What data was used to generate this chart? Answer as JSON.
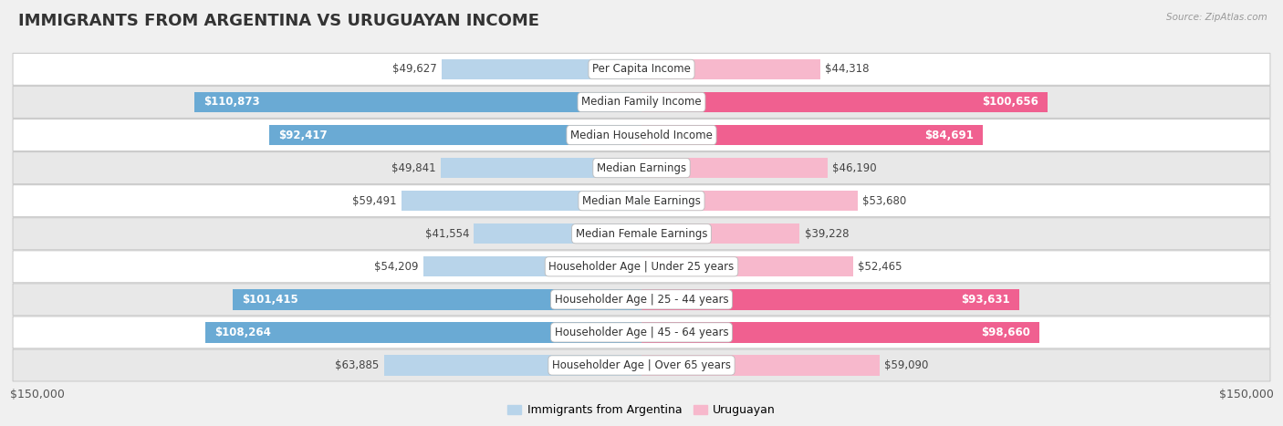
{
  "title": "IMMIGRANTS FROM ARGENTINA VS URUGUAYAN INCOME",
  "source": "Source: ZipAtlas.com",
  "categories": [
    "Per Capita Income",
    "Median Family Income",
    "Median Household Income",
    "Median Earnings",
    "Median Male Earnings",
    "Median Female Earnings",
    "Householder Age | Under 25 years",
    "Householder Age | 25 - 44 years",
    "Householder Age | 45 - 64 years",
    "Householder Age | Over 65 years"
  ],
  "argentina_values": [
    49627,
    110873,
    92417,
    49841,
    59491,
    41554,
    54209,
    101415,
    108264,
    63885
  ],
  "uruguayan_values": [
    44318,
    100656,
    84691,
    46190,
    53680,
    39228,
    52465,
    93631,
    98660,
    59090
  ],
  "argentina_labels": [
    "$49,627",
    "$110,873",
    "$92,417",
    "$49,841",
    "$59,491",
    "$41,554",
    "$54,209",
    "$101,415",
    "$108,264",
    "$63,885"
  ],
  "uruguayan_labels": [
    "$44,318",
    "$100,656",
    "$84,691",
    "$46,190",
    "$53,680",
    "$39,228",
    "$52,465",
    "$93,631",
    "$98,660",
    "$59,090"
  ],
  "argentina_color_light": "#b8d4ea",
  "argentina_color_dark": "#6aaad4",
  "uruguayan_color_light": "#f7b8cc",
  "uruguayan_color_dark": "#f06090",
  "large_threshold": 70000,
  "max_value": 150000,
  "bg_color": "#f0f0f0",
  "row_bg_odd": "#ffffff",
  "row_bg_even": "#e8e8e8",
  "title_fontsize": 13,
  "label_fontsize": 8.5,
  "cat_fontsize": 8.5,
  "tick_fontsize": 9,
  "legend_fontsize": 9
}
